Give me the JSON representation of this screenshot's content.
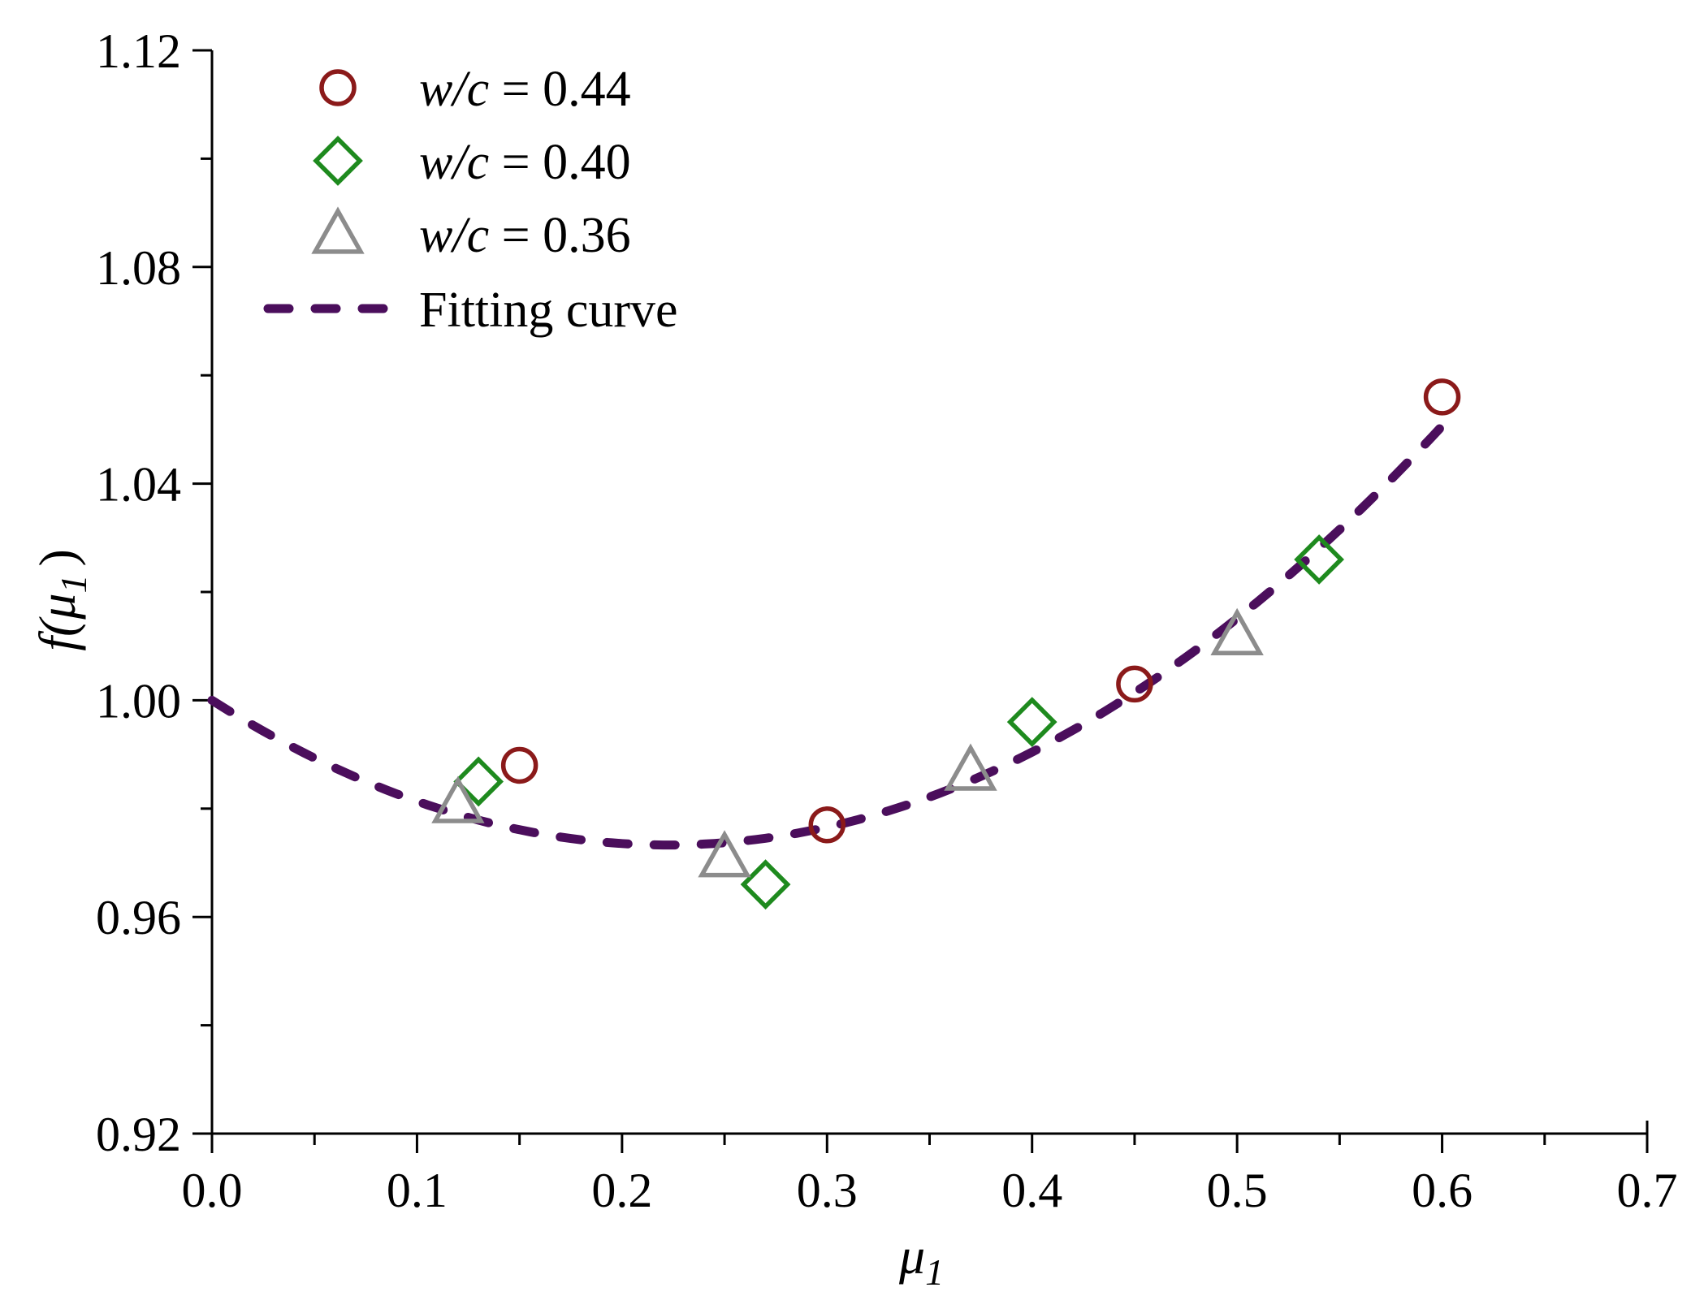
{
  "chart_data": {
    "type": "scatter",
    "title": "",
    "xlabel": "μ",
    "xlabel_sub": "1",
    "ylabel": "f(μ",
    "ylabel_sub": "1",
    "ylabel_close": ")",
    "xlim": [
      0.0,
      0.7
    ],
    "ylim": [
      0.92,
      1.12
    ],
    "xticks": [
      0.0,
      0.1,
      0.2,
      0.3,
      0.4,
      0.5,
      0.6,
      0.7
    ],
    "xtick_labels": [
      "0.0",
      "0.1",
      "0.2",
      "0.3",
      "0.4",
      "0.5",
      "0.6",
      "0.7"
    ],
    "yticks": [
      0.92,
      0.96,
      1.0,
      1.04,
      1.08,
      1.12
    ],
    "ytick_labels": [
      "0.92",
      "0.96",
      "1.00",
      "1.04",
      "1.08",
      "1.12"
    ],
    "x_minor_step": 0.05,
    "y_minor_step": 0.02,
    "legend_position": "top-left",
    "series": [
      {
        "name": "w/c = 0.44",
        "name_italic": "w/c",
        "name_rest": " = 0.44",
        "marker": "circle",
        "color": "#8B1A1A",
        "x": [
          0.15,
          0.3,
          0.45,
          0.6
        ],
        "y": [
          0.988,
          0.977,
          1.003,
          1.056
        ]
      },
      {
        "name": "w/c = 0.40",
        "name_italic": "w/c",
        "name_rest": " = 0.40",
        "marker": "diamond",
        "color": "#1E8A1E",
        "x": [
          0.13,
          0.27,
          0.4,
          0.54
        ],
        "y": [
          0.985,
          0.966,
          0.996,
          1.026
        ]
      },
      {
        "name": "w/c = 0.36",
        "name_italic": "w/c",
        "name_rest": " = 0.36",
        "marker": "triangle",
        "color": "#8C8C8C",
        "x": [
          0.12,
          0.25,
          0.37,
          0.5
        ],
        "y": [
          0.981,
          0.971,
          0.987,
          1.012
        ]
      }
    ],
    "fit": {
      "name": "Fitting curve",
      "color": "#4B0E5C",
      "style": "dashed",
      "x_range": [
        0.0,
        0.6
      ],
      "coefficients": {
        "a": 1.0,
        "b": -0.2406,
        "c": 0.5417
      }
    }
  }
}
